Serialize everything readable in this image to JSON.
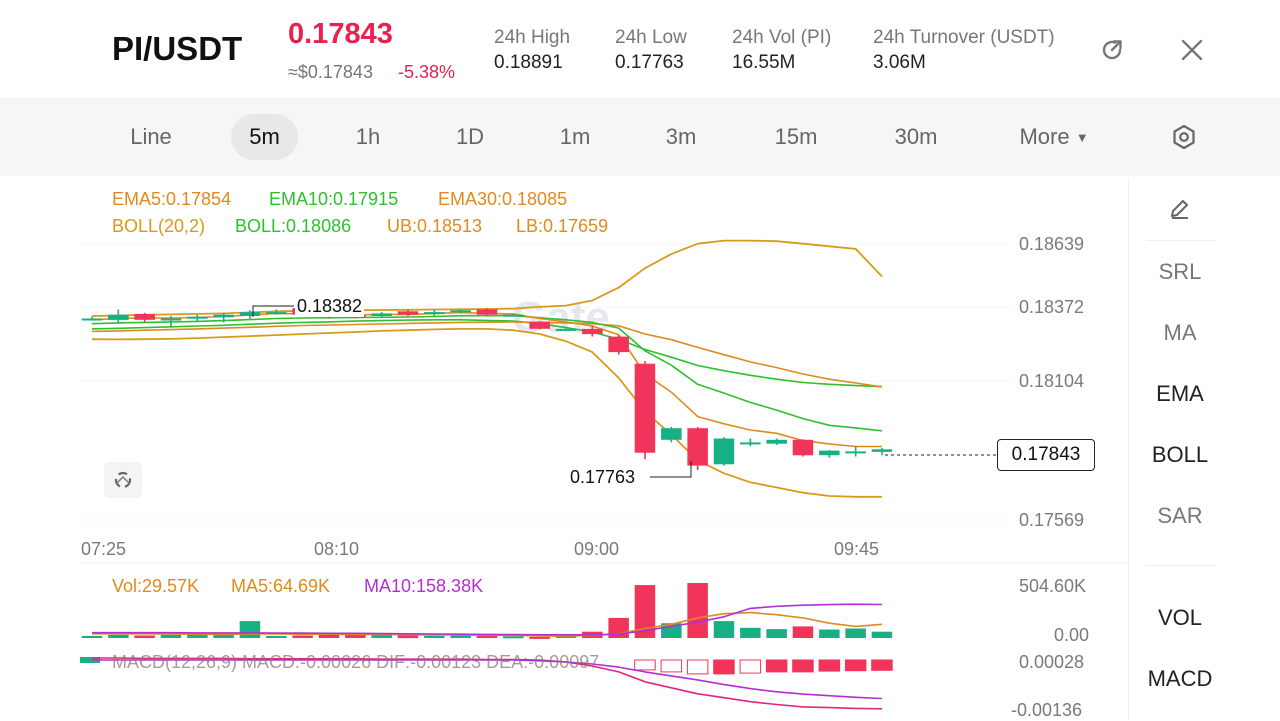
{
  "header": {
    "pair": "PI/USDT",
    "last_price": "0.17843",
    "usd_price": "≈$0.17843",
    "change": "-5.38%",
    "stats": [
      {
        "label": "24h  High",
        "value": "0.18891"
      },
      {
        "label": "24h  Low",
        "value": "0.17763"
      },
      {
        "label": "24h  Vol (PI)",
        "value": "16.55M"
      },
      {
        "label": "24h  Turnover (USDT)",
        "value": "3.06M"
      }
    ]
  },
  "timeframes": {
    "items": [
      "Line",
      "5m",
      "1h",
      "1D",
      "1m",
      "3m",
      "15m",
      "30m"
    ],
    "active": "5m",
    "more_label": "More"
  },
  "main_chart": {
    "ema_legend": [
      "EMA5:0.17854",
      "EMA10:0.17915",
      "EMA30:0.18085"
    ],
    "boll_legend": [
      "BOLL(20,2)",
      "BOLL:0.18086",
      "UB:0.18513",
      "LB:0.17659"
    ],
    "y_ticks": [
      "0.18639",
      "0.18372",
      "0.18104",
      "0.17569"
    ],
    "x_ticks": [
      "07:25",
      "08:10",
      "09:00",
      "09:45"
    ],
    "high_annotation": "0.18382",
    "low_annotation": "0.17763",
    "current_price_tag": "0.17843",
    "watermark": "Gate"
  },
  "volume_chart": {
    "legend": [
      "Vol:29.57K",
      "MA5:64.69K",
      "MA10:158.38K"
    ],
    "y_ticks": [
      "504.60K",
      "0.00"
    ]
  },
  "macd_chart": {
    "legend": "MACD(12,26,9)  MACD:-0.00026  DIF:-0.00123  DEA:-0.00097",
    "y_ticks": [
      "0.00028",
      "-0.00136"
    ]
  },
  "indicators": {
    "main": [
      "SRL",
      "MA",
      "EMA",
      "BOLL",
      "SAR"
    ],
    "sub": [
      "VOL",
      "MACD"
    ]
  },
  "colors": {
    "up": "#17b085",
    "down": "#f0345a",
    "ema5": "#e08a1e",
    "ema10": "#2ec02e",
    "ema30": "#e08a1e",
    "boll": "#d99a17",
    "ma10": "#b22fd6",
    "accent": "#e8214f"
  },
  "chart_data": {
    "type": "candlestick",
    "x_labels": [
      "07:25",
      "08:10",
      "09:00",
      "09:45"
    ],
    "ylim": [
      0.1747,
      0.1874
    ],
    "candles": [
      {
        "o": 0.1835,
        "c": 0.1835,
        "h": 0.18358,
        "l": 0.18342
      },
      {
        "o": 0.18345,
        "c": 0.18365,
        "h": 0.18385,
        "l": 0.18335
      },
      {
        "o": 0.18368,
        "c": 0.18345,
        "h": 0.18372,
        "l": 0.18335
      },
      {
        "o": 0.18348,
        "c": 0.1835,
        "h": 0.1836,
        "l": 0.18315
      },
      {
        "o": 0.1835,
        "c": 0.18357,
        "h": 0.18365,
        "l": 0.1834
      },
      {
        "o": 0.18355,
        "c": 0.18365,
        "h": 0.18372,
        "l": 0.18335
      },
      {
        "o": 0.1836,
        "c": 0.18375,
        "h": 0.18382,
        "l": 0.1835
      },
      {
        "o": 0.18373,
        "c": 0.18375,
        "h": 0.18385,
        "l": 0.18365
      },
      {
        "o": 0.1839,
        "c": 0.18365,
        "h": 0.18392,
        "l": 0.1836
      },
      {
        "o": 0.18365,
        "c": 0.1836,
        "h": 0.1837,
        "l": 0.1835
      },
      {
        "o": 0.18362,
        "c": 0.18358,
        "h": 0.1837,
        "l": 0.1835
      },
      {
        "o": 0.1836,
        "c": 0.1837,
        "h": 0.18375,
        "l": 0.18355
      },
      {
        "o": 0.18378,
        "c": 0.18365,
        "h": 0.18385,
        "l": 0.1836
      },
      {
        "o": 0.18368,
        "c": 0.18375,
        "h": 0.18385,
        "l": 0.1836
      },
      {
        "o": 0.18375,
        "c": 0.18382,
        "h": 0.18385,
        "l": 0.1837
      },
      {
        "o": 0.18385,
        "c": 0.18365,
        "h": 0.1839,
        "l": 0.1836
      },
      {
        "o": 0.18365,
        "c": 0.18365,
        "h": 0.18368,
        "l": 0.18362
      },
      {
        "o": 0.18338,
        "c": 0.1831,
        "h": 0.1834,
        "l": 0.18308
      },
      {
        "o": 0.1831,
        "c": 0.1831,
        "h": 0.18312,
        "l": 0.18308
      },
      {
        "o": 0.1831,
        "c": 0.1829,
        "h": 0.1832,
        "l": 0.1828
      },
      {
        "o": 0.1828,
        "c": 0.1822,
        "h": 0.18285,
        "l": 0.1821
      },
      {
        "o": 0.18175,
        "c": 0.1783,
        "h": 0.18185,
        "l": 0.17805
      },
      {
        "o": 0.1788,
        "c": 0.17925,
        "h": 0.1793,
        "l": 0.1787
      },
      {
        "o": 0.17925,
        "c": 0.1778,
        "h": 0.1793,
        "l": 0.17763
      },
      {
        "o": 0.17785,
        "c": 0.17885,
        "h": 0.1789,
        "l": 0.1778
      },
      {
        "o": 0.1787,
        "c": 0.1787,
        "h": 0.17885,
        "l": 0.17855
      },
      {
        "o": 0.17865,
        "c": 0.1788,
        "h": 0.17885,
        "l": 0.1786
      },
      {
        "o": 0.1788,
        "c": 0.1782,
        "h": 0.17882,
        "l": 0.17815
      },
      {
        "o": 0.1782,
        "c": 0.17838,
        "h": 0.1784,
        "l": 0.1781
      },
      {
        "o": 0.17835,
        "c": 0.17835,
        "h": 0.17855,
        "l": 0.17815
      },
      {
        "o": 0.17833,
        "c": 0.17843,
        "h": 0.17848,
        "l": 0.1782
      }
    ],
    "ema5": [
      0.18345,
      0.1835,
      0.18352,
      0.18352,
      0.18354,
      0.18358,
      0.18364,
      0.1837,
      0.18368,
      0.18366,
      0.18364,
      0.18366,
      0.18366,
      0.18369,
      0.18373,
      0.1837,
      0.18368,
      0.1835,
      0.18337,
      0.18321,
      0.18287,
      0.18135,
      0.18065,
      0.1797,
      0.17942,
      0.17918,
      0.17905,
      0.17877,
      0.17864,
      0.17854,
      0.17854
    ],
    "ema10": [
      0.1833,
      0.18333,
      0.18335,
      0.18337,
      0.18339,
      0.18342,
      0.18346,
      0.1835,
      0.18352,
      0.18353,
      0.18354,
      0.18355,
      0.18356,
      0.18358,
      0.18361,
      0.18361,
      0.18362,
      0.18353,
      0.18345,
      0.18335,
      0.18313,
      0.18225,
      0.18169,
      0.18095,
      0.18061,
      0.18025,
      0.17995,
      0.17962,
      0.17936,
      0.17926,
      0.17915
    ],
    "ema30": [
      0.183,
      0.18302,
      0.18305,
      0.18307,
      0.1831,
      0.18313,
      0.18316,
      0.1832,
      0.18323,
      0.18325,
      0.18327,
      0.18329,
      0.18331,
      0.18333,
      0.18335,
      0.18336,
      0.18337,
      0.18335,
      0.18333,
      0.1833,
      0.18322,
      0.1829,
      0.18268,
      0.18238,
      0.1821,
      0.18182,
      0.1816,
      0.18135,
      0.18115,
      0.181,
      0.18085
    ],
    "boll_ub": [
      0.1836,
      0.18362,
      0.18364,
      0.18366,
      0.18368,
      0.1837,
      0.18374,
      0.18378,
      0.1838,
      0.18381,
      0.18382,
      0.18383,
      0.18384,
      0.18385,
      0.18386,
      0.18387,
      0.18388,
      0.18395,
      0.184,
      0.1842,
      0.1847,
      0.18545,
      0.186,
      0.1864,
      0.18652,
      0.18652,
      0.1865,
      0.1864,
      0.1863,
      0.1862,
      0.18513
    ],
    "boll_mid": [
      0.1831,
      0.18312,
      0.18315,
      0.18318,
      0.18321,
      0.18324,
      0.18328,
      0.18332,
      0.18335,
      0.18337,
      0.1834,
      0.18342,
      0.18344,
      0.18345,
      0.18345,
      0.18343,
      0.1834,
      0.1833,
      0.18315,
      0.18298,
      0.1827,
      0.1823,
      0.182,
      0.18168,
      0.18148,
      0.1813,
      0.18115,
      0.18102,
      0.18095,
      0.1809,
      0.18086
    ],
    "boll_lb": [
      0.1827,
      0.18269,
      0.1827,
      0.18271,
      0.18274,
      0.18278,
      0.18282,
      0.18286,
      0.1829,
      0.18294,
      0.18298,
      0.18302,
      0.18305,
      0.18308,
      0.1831,
      0.1831,
      0.18305,
      0.1829,
      0.18262,
      0.1822,
      0.1812,
      0.1799,
      0.179,
      0.178,
      0.1775,
      0.17715,
      0.17695,
      0.17675,
      0.17662,
      0.17659,
      0.17659
    ],
    "volume": [
      10,
      15,
      12,
      15,
      18,
      14,
      80,
      10,
      12,
      18,
      15,
      20,
      13,
      10,
      14,
      12,
      8,
      5,
      10,
      30,
      95,
      250,
      70,
      260,
      80,
      48,
      42,
      55,
      40,
      45,
      29.57
    ],
    "vol_ma5": [
      20,
      20,
      20,
      19,
      18,
      17,
      20,
      19,
      18,
      18,
      17,
      17,
      15,
      14,
      14,
      13,
      12,
      10,
      9,
      12,
      20,
      45,
      65,
      95,
      115,
      120,
      110,
      95,
      70,
      55,
      64.69
    ],
    "vol_ma10": [
      25,
      25,
      25,
      25,
      24,
      24,
      24,
      23,
      23,
      22,
      22,
      21,
      20,
      19,
      18,
      17,
      16,
      15,
      15,
      15,
      18,
      35,
      55,
      75,
      100,
      140,
      150,
      155,
      158,
      160,
      158.38
    ],
    "macd_hist": [
      0,
      0,
      0,
      0,
      0,
      0,
      0,
      0,
      0,
      0,
      0,
      0,
      0,
      0,
      0,
      0,
      0,
      0,
      0,
      0,
      0,
      -0.00025,
      -0.0003,
      -0.00035,
      -0.00035,
      -0.00033,
      -0.0003,
      -0.0003,
      -0.00028,
      -0.00027,
      -0.00026
    ],
    "macd_dif": [
      5e-05,
      5e-05,
      4e-05,
      4e-05,
      4e-05,
      4e-05,
      3e-05,
      3e-05,
      3e-05,
      3e-05,
      3e-05,
      2e-05,
      2e-05,
      2e-05,
      2e-05,
      1e-05,
      1e-05,
      0,
      -5e-05,
      -0.00015,
      -0.0003,
      -0.00055,
      -0.0007,
      -0.00085,
      -0.00095,
      -0.00105,
      -0.00112,
      -0.00118,
      -0.0012,
      -0.00122,
      -0.00123
    ],
    "macd_dea": [
      0,
      0,
      0,
      0,
      0,
      0,
      0,
      0,
      0,
      0,
      0,
      0,
      0,
      0,
      0,
      0,
      0,
      -2e-05,
      -5e-05,
      -0.0001,
      -0.00018,
      -0.0003,
      -0.0004,
      -0.0005,
      -0.00062,
      -0.00072,
      -0.0008,
      -0.00086,
      -0.0009,
      -0.00094,
      -0.00097
    ]
  }
}
